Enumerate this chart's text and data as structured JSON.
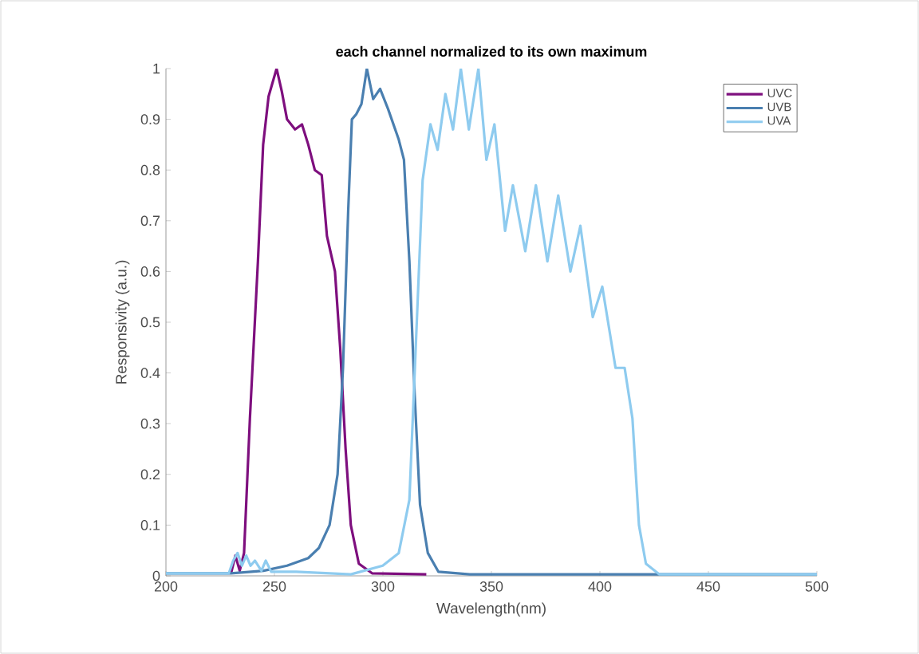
{
  "chart_data": {
    "type": "line",
    "title": "each channel normalized to its own maximum",
    "xlabel": "Wavelength(nm)",
    "ylabel": "Responsivity (a.u.)",
    "xlim": [
      200,
      500
    ],
    "ylim": [
      0,
      1
    ],
    "xticks": [
      200,
      250,
      300,
      350,
      400,
      450,
      500
    ],
    "yticks": [
      0,
      0.1,
      0.2,
      0.3,
      0.4,
      0.5,
      0.6,
      0.7,
      0.8,
      0.9,
      1
    ],
    "legend": "top right",
    "grid": false,
    "marker": "none",
    "line_style": "solid",
    "series": [
      {
        "name": "UVC",
        "color": "#7e0f7e",
        "x": [
          230,
          232,
          234,
          236,
          238.7,
          242.4,
          244.8,
          247.3,
          251,
          253.4,
          255.8,
          259.5,
          262.7,
          265.6,
          268.6,
          271.8,
          274.2,
          277.9,
          280.3,
          282.8,
          285.2,
          288.9,
          295,
          320
        ],
        "values": [
          0.005,
          0.04,
          0.01,
          0.045,
          0.31,
          0.62,
          0.85,
          0.945,
          1.0,
          0.955,
          0.9,
          0.88,
          0.89,
          0.85,
          0.8,
          0.79,
          0.67,
          0.6,
          0.45,
          0.25,
          0.1,
          0.024,
          0.005,
          0.003
        ]
      },
      {
        "name": "UVB",
        "color": "#4a7fb0",
        "x": [
          200,
          230,
          245,
          255.8,
          265.6,
          270.5,
          275.4,
          279.1,
          281.6,
          284,
          285.7,
          287.7,
          290.1,
          292.6,
          295.5,
          298.7,
          302.4,
          307.3,
          309.7,
          312.2,
          314.6,
          317.1,
          320.7,
          325.6,
          340,
          500
        ],
        "values": [
          0.005,
          0.005,
          0.01,
          0.02,
          0.035,
          0.055,
          0.1,
          0.2,
          0.41,
          0.72,
          0.9,
          0.91,
          0.93,
          1.0,
          0.94,
          0.96,
          0.92,
          0.86,
          0.82,
          0.62,
          0.36,
          0.14,
          0.045,
          0.008,
          0.003,
          0.003
        ]
      },
      {
        "name": "UVA",
        "color": "#8ecbef",
        "x": [
          200,
          229,
          231,
          233,
          235,
          237,
          239,
          241,
          244,
          246,
          248.5,
          260,
          285.2,
          299.9,
          307.3,
          312.2,
          315.8,
          318.3,
          321.9,
          325.2,
          328.8,
          332.3,
          335.9,
          339.6,
          344,
          347.7,
          351.4,
          356.3,
          359.9,
          365.6,
          370.5,
          375.8,
          380.8,
          386.4,
          391,
          396.7,
          401.1,
          407.2,
          411.4,
          415,
          418,
          421.2,
          427.3,
          500
        ],
        "values": [
          0.005,
          0.005,
          0.03,
          0.045,
          0.02,
          0.04,
          0.02,
          0.03,
          0.01,
          0.03,
          0.008,
          0.008,
          0.003,
          0.02,
          0.045,
          0.15,
          0.52,
          0.78,
          0.89,
          0.84,
          0.95,
          0.88,
          1.0,
          0.88,
          1.0,
          0.82,
          0.89,
          0.68,
          0.77,
          0.64,
          0.77,
          0.62,
          0.75,
          0.6,
          0.69,
          0.51,
          0.57,
          0.41,
          0.41,
          0.31,
          0.1,
          0.024,
          0.003,
          0.003
        ]
      }
    ]
  }
}
